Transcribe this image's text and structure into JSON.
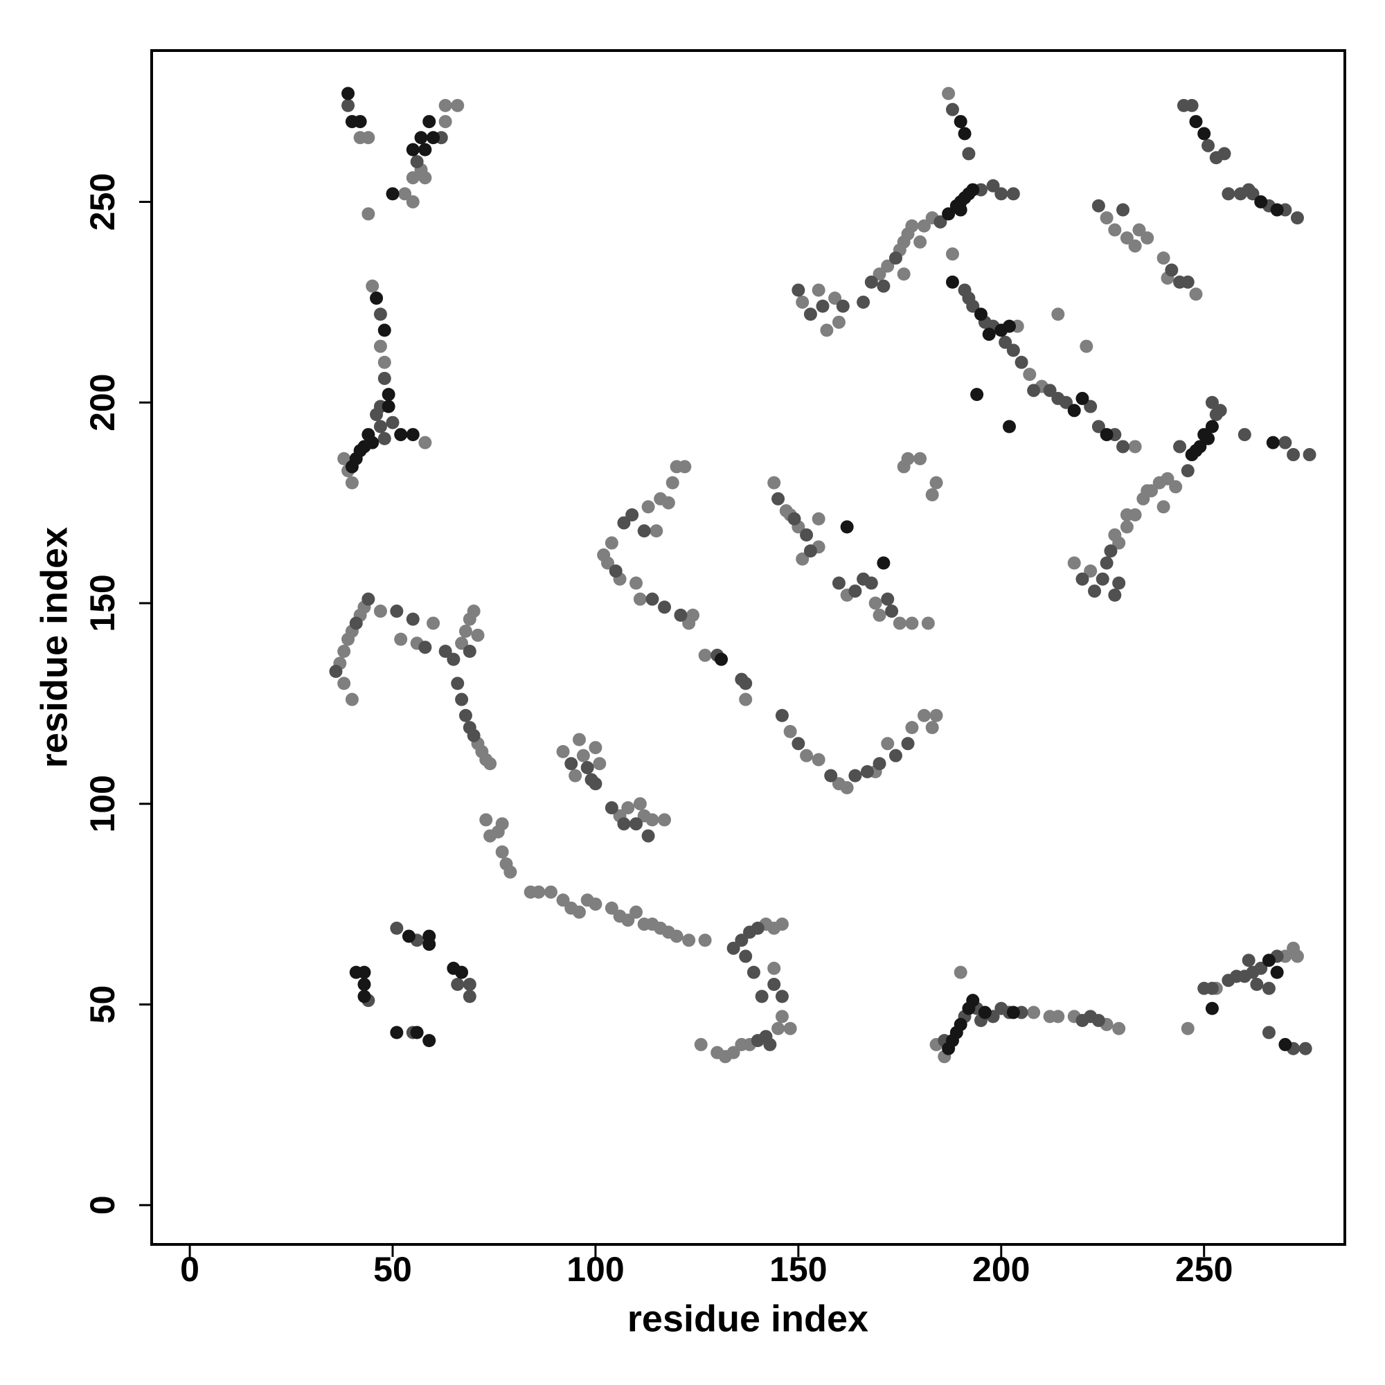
{
  "chart_data": {
    "type": "scatter",
    "xlabel": "residue index",
    "ylabel": "residue index",
    "xlim": [
      -9.4,
      284.7
    ],
    "ylim": [
      -9.8,
      287.7
    ],
    "xticks": [
      0,
      50,
      100,
      150,
      200,
      250
    ],
    "yticks": [
      0,
      50,
      100,
      150,
      200,
      250
    ],
    "series": [
      {
        "color": "#7f7f7f",
        "x": [
          42,
          44,
          44,
          53,
          55,
          55,
          57,
          58,
          63,
          63,
          66,
          45,
          47,
          48,
          39,
          40,
          38,
          58,
          37,
          38,
          39,
          40,
          42,
          43,
          40,
          38,
          47,
          52,
          56,
          60,
          67,
          68,
          69,
          70,
          71,
          71,
          72,
          73,
          74,
          73,
          74,
          76,
          77,
          77,
          78,
          79,
          84,
          86,
          89,
          92,
          94,
          96,
          98,
          100,
          104,
          106,
          108,
          110,
          112,
          114,
          116,
          118,
          120,
          123,
          127,
          142,
          144,
          146,
          144,
          146,
          145,
          138,
          136,
          134,
          132,
          130,
          126,
          148,
          92,
          95,
          96,
          97,
          100,
          101,
          106,
          108,
          111,
          112,
          114,
          117,
          102,
          103,
          104,
          106,
          110,
          111,
          113,
          115,
          116,
          118,
          119,
          120,
          122,
          123,
          124,
          127,
          137,
          148,
          152,
          155,
          160,
          162,
          169,
          172,
          178,
          181,
          183,
          184,
          144,
          147,
          148,
          150,
          151,
          155,
          155,
          162,
          169,
          170,
          175,
          178,
          182,
          176,
          177,
          180,
          183,
          184,
          151,
          155,
          157,
          159,
          160,
          170,
          172,
          175,
          176,
          177,
          178,
          180,
          181,
          183,
          176,
          188,
          187,
          207,
          204,
          214,
          221,
          210,
          233,
          226,
          228,
          231,
          233,
          234,
          236,
          240,
          241,
          248,
          218,
          222,
          229,
          231,
          233,
          235,
          237,
          239,
          241,
          243,
          231,
          228,
          236,
          240,
          184,
          186,
          190,
          208,
          212,
          214,
          218,
          226,
          229,
          246,
          253,
          270,
          272,
          273
        ],
        "y": [
          266,
          266,
          247,
          252,
          256,
          250,
          258,
          256,
          270,
          274,
          274,
          229,
          214,
          210,
          183,
          180,
          186,
          190,
          135,
          138,
          141,
          143,
          147,
          149,
          126,
          130,
          148,
          141,
          140,
          145,
          140,
          143,
          146,
          148,
          142,
          115,
          113,
          111,
          110,
          96,
          92,
          93,
          95,
          88,
          85,
          83,
          78,
          78,
          78,
          76,
          74,
          73,
          76,
          75,
          74,
          72,
          71,
          73,
          70,
          70,
          69,
          68,
          67,
          66,
          66,
          70,
          69,
          70,
          59,
          47,
          44,
          40,
          40,
          38,
          37,
          38,
          40,
          44,
          113,
          107,
          116,
          112,
          114,
          110,
          97,
          99,
          100,
          97,
          96,
          96,
          162,
          160,
          165,
          156,
          155,
          151,
          174,
          168,
          176,
          175,
          180,
          184,
          184,
          145,
          147,
          137,
          126,
          118,
          112,
          111,
          105,
          104,
          108,
          115,
          119,
          122,
          119,
          122,
          180,
          173,
          172,
          169,
          161,
          164,
          171,
          152,
          150,
          147,
          145,
          145,
          145,
          184,
          186,
          186,
          177,
          180,
          225,
          228,
          218,
          226,
          220,
          232,
          234,
          238,
          240,
          242,
          244,
          240,
          244,
          246,
          232,
          237,
          277,
          207,
          219,
          222,
          214,
          204,
          189,
          246,
          243,
          241,
          239,
          243,
          241,
          236,
          231,
          227,
          160,
          158,
          165,
          169,
          172,
          176,
          178,
          180,
          181,
          179,
          172,
          167,
          178,
          174,
          40,
          37,
          58,
          48,
          47,
          47,
          47,
          45,
          44,
          44,
          54,
          62,
          64,
          62
        ]
      },
      {
        "color": "#505050",
        "x": [
          39,
          56,
          62,
          47,
          48,
          46,
          47,
          48,
          50,
          47,
          44,
          51,
          56,
          66,
          69,
          69,
          55,
          36,
          41,
          44,
          51,
          55,
          58,
          63,
          65,
          69,
          66,
          67,
          68,
          69,
          70,
          104,
          107,
          110,
          113,
          94,
          98,
          99,
          100,
          107,
          109,
          112,
          114,
          117,
          121,
          105,
          130,
          136,
          137,
          146,
          150,
          158,
          164,
          167,
          170,
          174,
          177,
          145,
          149,
          152,
          153,
          160,
          164,
          166,
          168,
          172,
          173,
          134,
          136,
          138,
          140,
          137,
          139,
          141,
          144,
          146,
          142,
          140,
          143,
          150,
          153,
          156,
          161,
          166,
          168,
          171,
          174,
          185,
          195,
          198,
          200,
          203,
          188,
          192,
          191,
          192,
          193,
          196,
          198,
          201,
          203,
          205,
          208,
          212,
          214,
          216,
          222,
          224,
          228,
          230,
          224,
          230,
          244,
          246,
          242,
          245,
          247,
          251,
          253,
          255,
          256,
          259,
          261,
          262,
          266,
          270,
          273,
          220,
          223,
          225,
          228,
          229,
          226,
          227,
          244,
          246,
          253,
          254,
          252,
          260,
          270,
          272,
          276,
          186,
          191,
          194,
          198,
          200,
          202,
          205,
          220,
          222,
          224,
          195,
          250,
          252,
          256,
          258,
          260,
          262,
          264,
          261,
          263,
          266,
          268,
          272,
          275,
          266
        ],
        "y": [
          274,
          260,
          266,
          222,
          206,
          197,
          194,
          191,
          195,
          199,
          51,
          69,
          66,
          55,
          55,
          52,
          43,
          133,
          145,
          151,
          148,
          146,
          139,
          138,
          136,
          138,
          130,
          126,
          122,
          119,
          117,
          99,
          95,
          95,
          92,
          110,
          109,
          106,
          105,
          170,
          172,
          168,
          151,
          149,
          147,
          158,
          137,
          131,
          130,
          122,
          115,
          107,
          107,
          108,
          110,
          112,
          115,
          176,
          171,
          167,
          163,
          155,
          153,
          156,
          155,
          151,
          148,
          64,
          66,
          68,
          69,
          62,
          58,
          52,
          55,
          52,
          42,
          41,
          40,
          228,
          222,
          224,
          224,
          225,
          230,
          229,
          236,
          245,
          253,
          254,
          252,
          252,
          273,
          262,
          228,
          226,
          224,
          220,
          219,
          215,
          213,
          210,
          203,
          203,
          201,
          200,
          199,
          194,
          192,
          189,
          249,
          248,
          230,
          230,
          233,
          274,
          274,
          264,
          261,
          262,
          252,
          252,
          253,
          252,
          249,
          248,
          246,
          156,
          153,
          156,
          152,
          155,
          160,
          163,
          189,
          183,
          197,
          198,
          200,
          192,
          190,
          187,
          187,
          41,
          47,
          49,
          47,
          49,
          48,
          48,
          46,
          47,
          46,
          46,
          54,
          54,
          56,
          57,
          57,
          58,
          59,
          61,
          55,
          54,
          62,
          39,
          39,
          43
        ]
      },
      {
        "color": "#161616",
        "x": [
          39,
          40,
          42,
          55,
          57,
          59,
          60,
          58,
          50,
          46,
          48,
          49,
          49,
          44,
          43,
          42,
          41,
          40,
          45,
          55,
          52,
          41,
          43,
          43,
          43,
          54,
          59,
          59,
          65,
          67,
          51,
          56,
          59,
          162,
          171,
          131,
          187,
          189,
          190,
          191,
          192,
          193,
          190,
          190,
          191,
          188,
          195,
          197,
          200,
          202,
          194,
          202,
          220,
          218,
          226,
          247,
          249,
          251,
          252,
          248,
          250,
          248,
          250,
          264,
          268,
          267,
          187,
          188,
          189,
          190,
          192,
          193,
          196,
          203,
          252,
          266,
          268,
          270
        ],
        "y": [
          277,
          270,
          270,
          263,
          266,
          270,
          266,
          263,
          252,
          226,
          218,
          202,
          199,
          192,
          189,
          188,
          186,
          184,
          190,
          192,
          192,
          58,
          58,
          55,
          52,
          67,
          67,
          65,
          59,
          58,
          43,
          43,
          41,
          169,
          160,
          136,
          247,
          249,
          250,
          251,
          252,
          253,
          248,
          270,
          267,
          230,
          222,
          217,
          218,
          219,
          202,
          194,
          201,
          198,
          192,
          187,
          189,
          191,
          194,
          188,
          192,
          270,
          267,
          250,
          248,
          190,
          39,
          41,
          43,
          45,
          49,
          51,
          48,
          48,
          49,
          61,
          58,
          40
        ]
      }
    ]
  }
}
